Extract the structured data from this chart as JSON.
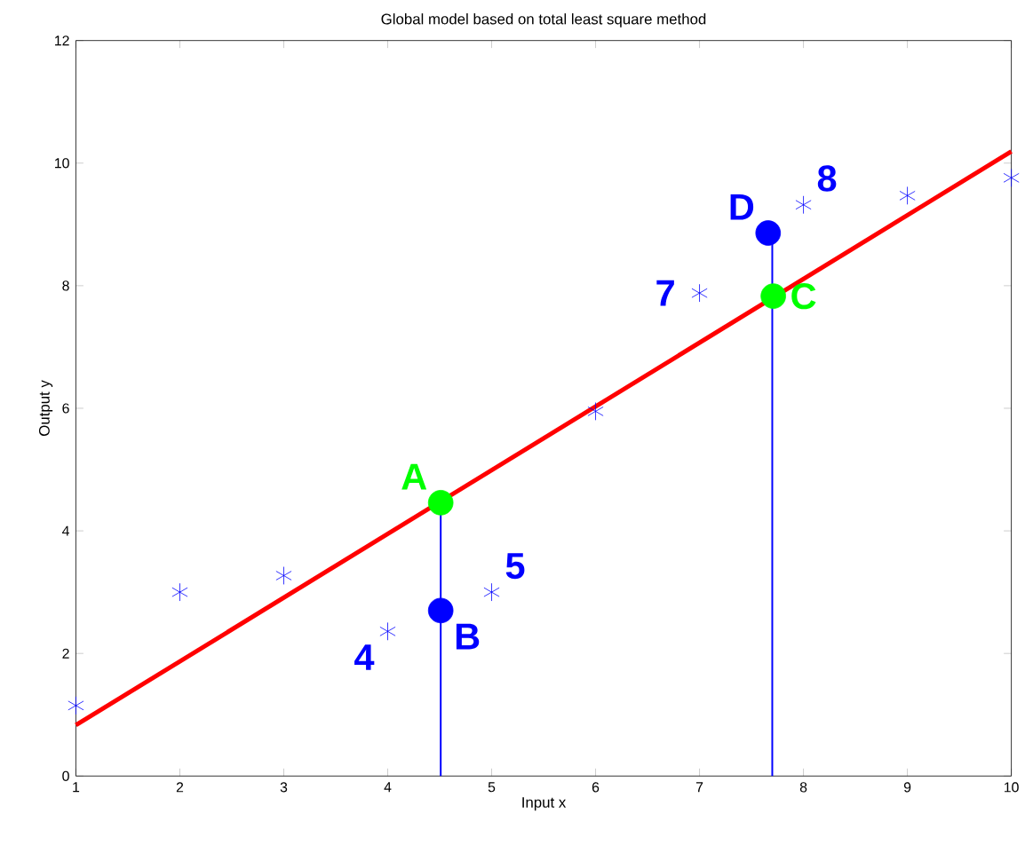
{
  "chart_data": {
    "type": "scatter",
    "title": "Global model based on total least square method",
    "xlabel": "Input x",
    "ylabel": "Output y",
    "xlim": [
      1,
      10
    ],
    "ylim": [
      0,
      12
    ],
    "xticks": [
      1,
      2,
      3,
      4,
      5,
      6,
      7,
      8,
      9,
      10
    ],
    "yticks": [
      0,
      2,
      4,
      6,
      8,
      10,
      12
    ],
    "series": [
      {
        "marker": "cross",
        "color": "#0000ff",
        "x": [
          1,
          2,
          3,
          4,
          5,
          6,
          7,
          8,
          9,
          10
        ],
        "values": [
          1.15,
          3.0,
          3.27,
          2.36,
          3.0,
          5.95,
          7.88,
          9.32,
          9.47,
          9.76
        ]
      },
      {
        "type": "line",
        "color": "#ff0000",
        "x": [
          1,
          10
        ],
        "values": [
          0.83,
          10.19
        ]
      },
      {
        "type": "line",
        "color": "#0000ff",
        "x": [
          4.51,
          4.51
        ],
        "values": [
          0,
          4.46
        ]
      },
      {
        "type": "line",
        "color": "#0000ff",
        "x": [
          7.7,
          7.7
        ],
        "values": [
          0,
          8.86
        ]
      },
      {
        "name": "A",
        "marker": "circle",
        "color": "#00ff00",
        "x": [
          4.51
        ],
        "values": [
          4.46
        ]
      },
      {
        "name": "B",
        "marker": "circle",
        "color": "#0000ff",
        "x": [
          4.51
        ],
        "values": [
          2.7
        ]
      },
      {
        "name": "C",
        "marker": "circle",
        "color": "#00ff00",
        "x": [
          7.71
        ],
        "values": [
          7.83
        ]
      },
      {
        "name": "D",
        "marker": "circle",
        "color": "#0000ff",
        "x": [
          7.66
        ],
        "values": [
          8.86
        ]
      }
    ],
    "annotations": [
      {
        "text": "4",
        "x": 4,
        "y": 2.36
      },
      {
        "text": "5",
        "x": 5,
        "y": 3.0
      },
      {
        "text": "7",
        "x": 7,
        "y": 7.88
      },
      {
        "text": "8",
        "x": 8,
        "y": 9.32
      }
    ]
  }
}
